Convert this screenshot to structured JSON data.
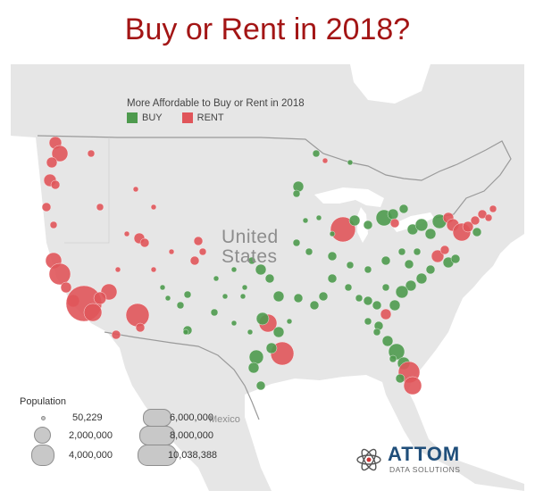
{
  "title": "Buy or Rent in 2018?",
  "legend_color": {
    "title": "More Affordable to Buy or Rent in 2018",
    "buy_label": "BUY",
    "rent_label": "RENT",
    "buy_color": "#4e9a4e",
    "rent_color": "#e0555a"
  },
  "map_labels": {
    "country_line1": "United",
    "country_line2": "States",
    "mexico": "Mexico"
  },
  "population_legend": {
    "title": "Population",
    "items": [
      "50,229",
      "2,000,000",
      "4,000,000",
      "6,000,000",
      "8,000,000",
      "10,038,388"
    ],
    "values": [
      50229,
      2000000,
      4000000,
      6000000,
      8000000,
      10038388
    ]
  },
  "brand": {
    "name": "ATTOM",
    "tagline": "DATA SOLUTIONS",
    "icon": "atom-icon"
  },
  "colors": {
    "land": "#e6e6e6",
    "water": "#ffffff",
    "border": "#9a9a9a",
    "title": "#a31515"
  }
}
